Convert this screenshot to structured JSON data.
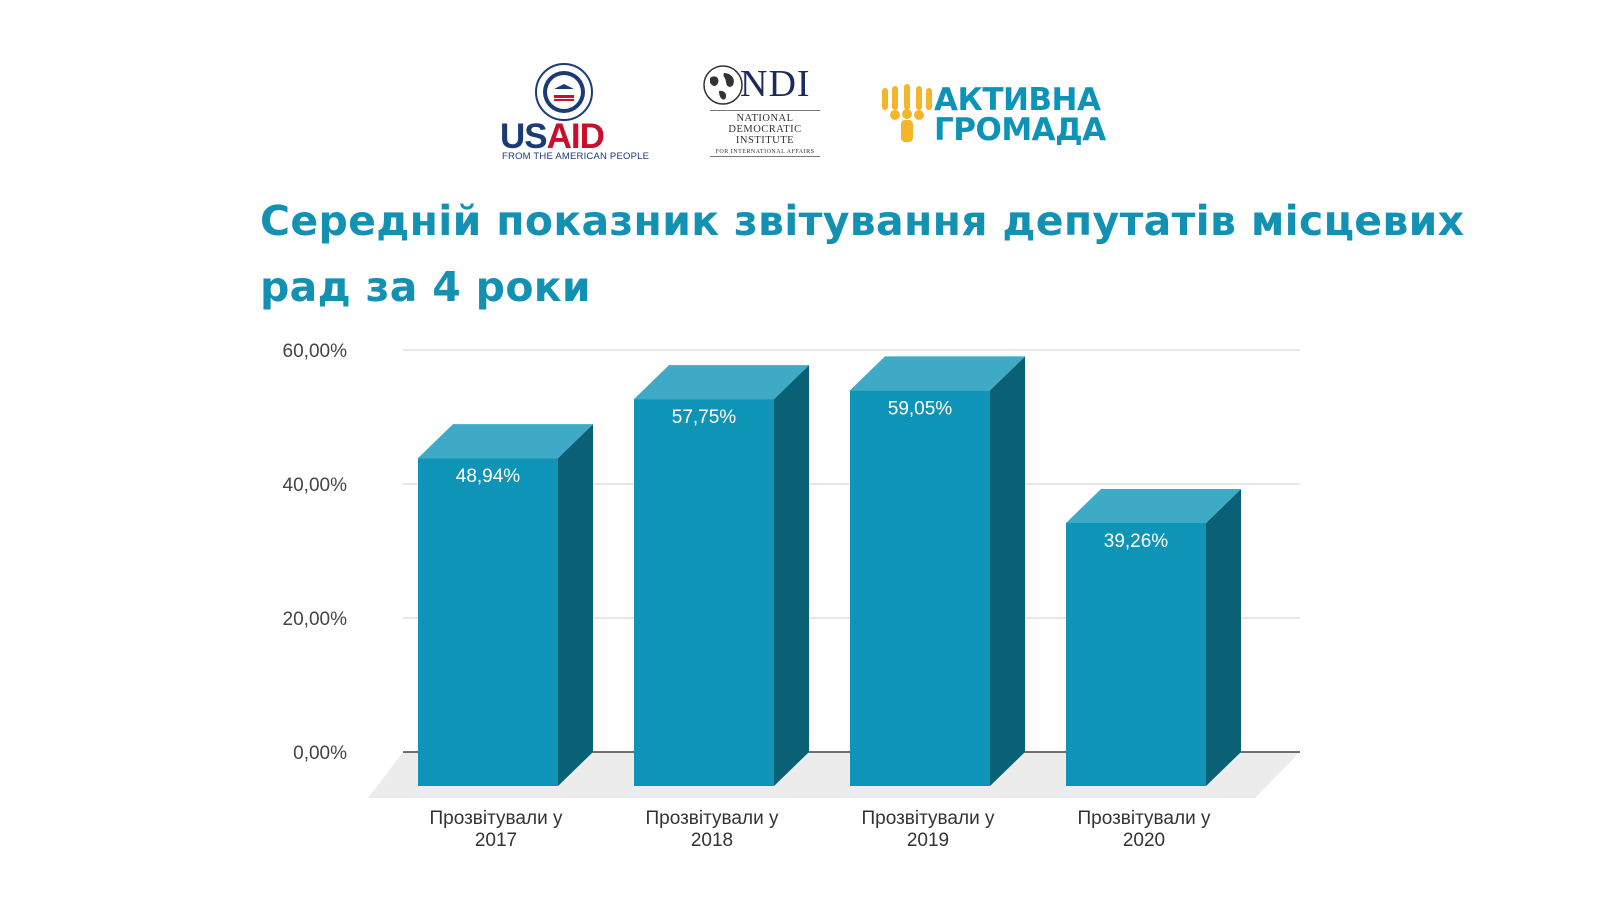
{
  "logos": {
    "usaid": {
      "name": "USAID",
      "tagline": "FROM THE AMERICAN PEOPLE"
    },
    "ndi": {
      "name": "NDI",
      "lines": [
        "NATIONAL",
        "DEMOCRATIC",
        "INSTITUTE",
        "FOR INTERNATIONAL AFFAIRS"
      ]
    },
    "aktyvna": {
      "lines": [
        "АКТИВНА",
        "ГРОМАДА"
      ]
    }
  },
  "colors": {
    "bar_front": "#0e94b6",
    "bar_top": "#3eaac6",
    "bar_side": "#0a6074",
    "title": "#1391b2",
    "floor": "#ececec"
  },
  "chart_data": {
    "type": "bar",
    "title": "Середній показник звітування депутатів місцевих рад за 4 роки",
    "categories": [
      [
        "Прозвітували у",
        "2017"
      ],
      [
        "Прозвітували у",
        "2018"
      ],
      [
        "Прозвітували у",
        "2019"
      ],
      [
        "Прозвітували у",
        "2020"
      ]
    ],
    "values": [
      48.94,
      57.75,
      59.05,
      39.26
    ],
    "data_labels": [
      "48,94%",
      "57,75%",
      "59,05%",
      "39,26%"
    ],
    "y_ticks": [
      0,
      20,
      40,
      60
    ],
    "y_tick_labels": [
      "0,00%",
      "20,00%",
      "40,00%",
      "60,00%"
    ],
    "ylim": [
      0,
      60
    ],
    "grid": true,
    "style": "3d"
  }
}
